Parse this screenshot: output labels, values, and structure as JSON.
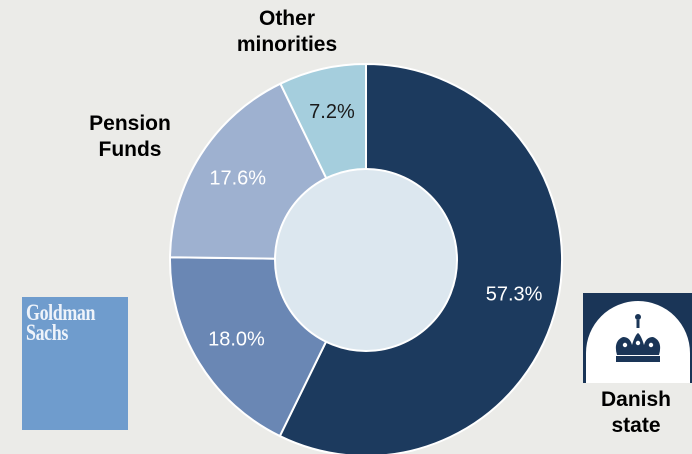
{
  "chart_data": {
    "type": "pie",
    "style": "donut",
    "categories": [
      "Danish state",
      "Goldman Sachs",
      "Pension Funds",
      "Other minorities"
    ],
    "values": [
      57.3,
      18.0,
      17.6,
      7.2
    ],
    "value_labels": [
      "57.3%",
      "18.0%",
      "17.6%",
      "7.2%"
    ],
    "colors": [
      "#1c3a5e",
      "#6a87b4",
      "#9eb1d0",
      "#a5cedd"
    ],
    "callouts": {
      "danish_state": "Danish\nstate",
      "pension_funds": "Pension\nFunds",
      "other_minorities": "Other\nminorities"
    },
    "logos": {
      "goldman_sachs": "Goldman\nSachs"
    },
    "title": "",
    "legend": "none",
    "grid": false
  },
  "colors": {
    "background": "#ebebe8",
    "hole": "#dce7ef",
    "separator": "#ffffff",
    "label_on_dark": "#ffffff",
    "label_on_light": "#1a1a1a",
    "gs_logo_bg": "#6f9ccd",
    "danish_logo_bg": "#1a3557"
  }
}
